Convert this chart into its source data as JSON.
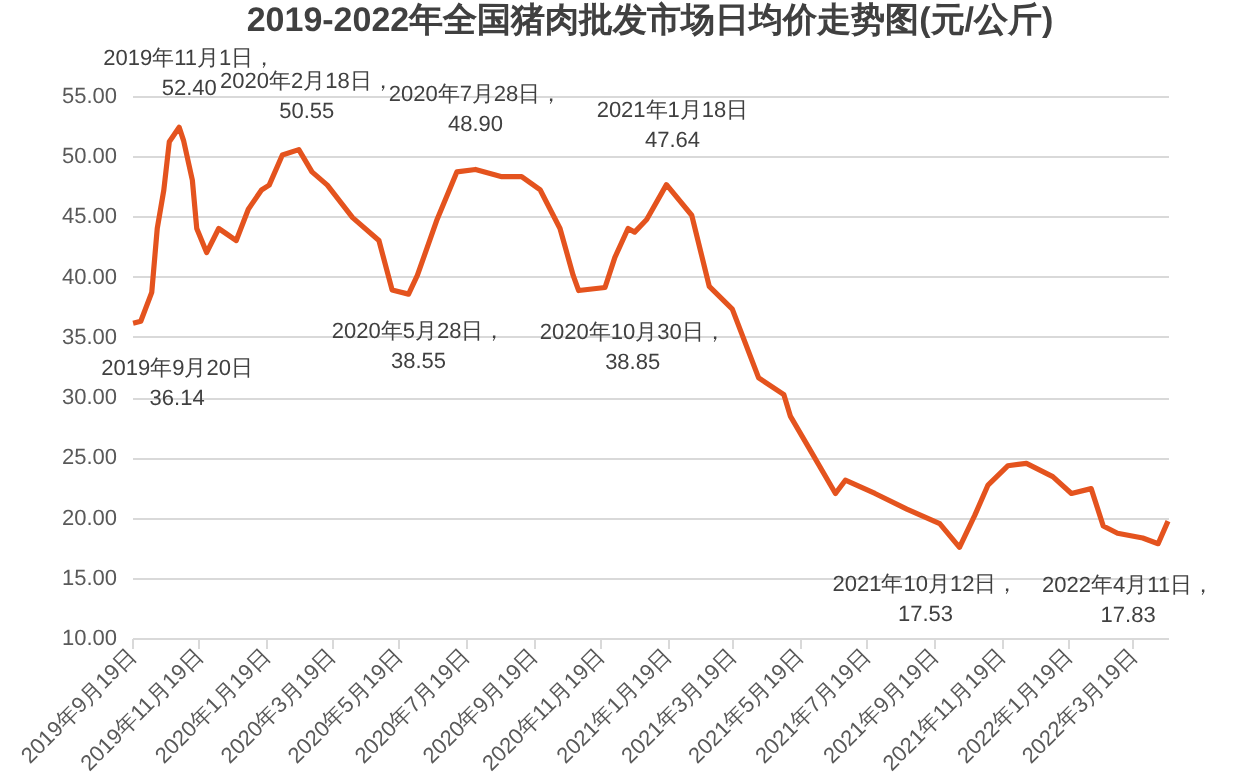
{
  "chart_data": {
    "type": "line",
    "title": "2019-2022年全国猪肉批发市场日均价走势图(元/公斤)",
    "x": [
      "2019-09-20",
      "2019-09-27",
      "2019-10-07",
      "2019-10-12",
      "2019-10-18",
      "2019-10-23",
      "2019-11-01",
      "2019-11-05",
      "2019-11-13",
      "2019-11-17",
      "2019-11-26",
      "2019-12-07",
      "2019-12-15",
      "2019-12-23",
      "2020-01-03",
      "2020-01-15",
      "2020-01-22",
      "2020-02-03",
      "2020-02-18",
      "2020-03-01",
      "2020-03-15",
      "2020-04-07",
      "2020-05-01",
      "2020-05-13",
      "2020-05-28",
      "2020-06-05",
      "2020-06-23",
      "2020-07-11",
      "2020-07-28",
      "2020-08-21",
      "2020-09-08",
      "2020-09-25",
      "2020-10-13",
      "2020-10-25",
      "2020-10-30",
      "2020-11-23",
      "2020-12-02",
      "2020-12-14",
      "2020-12-20",
      "2020-12-31",
      "2021-01-18",
      "2021-02-10",
      "2021-02-26",
      "2021-03-19",
      "2021-04-12",
      "2021-05-05",
      "2021-05-11",
      "2021-05-29",
      "2021-06-21",
      "2021-06-30",
      "2021-07-27",
      "2021-08-25",
      "2021-09-24",
      "2021-10-12",
      "2021-10-26",
      "2021-11-07",
      "2021-11-25",
      "2021-12-12",
      "2022-01-05",
      "2022-01-22",
      "2022-02-09",
      "2022-02-20",
      "2022-03-05",
      "2022-03-28",
      "2022-04-11",
      "2022-04-20"
    ],
    "series": [
      {
        "color": "#e4531e",
        "values": [
          36.14,
          36.3,
          38.7,
          44.0,
          47.2,
          51.2,
          52.4,
          51.3,
          48.0,
          44.0,
          42.0,
          44.0,
          43.5,
          43.0,
          45.6,
          47.2,
          47.6,
          50.1,
          50.55,
          48.7,
          47.6,
          44.9,
          43.0,
          38.9,
          38.55,
          40.1,
          44.75,
          48.7,
          48.9,
          48.3,
          48.3,
          47.2,
          44.0,
          40.1,
          38.85,
          39.1,
          41.6,
          44.0,
          43.7,
          44.75,
          47.64,
          45.1,
          39.2,
          37.3,
          31.6,
          30.2,
          28.4,
          25.6,
          22.0,
          23.1,
          22.0,
          20.7,
          19.5,
          17.53,
          20.2,
          22.7,
          24.3,
          24.5,
          23.4,
          22.0,
          22.4,
          19.3,
          18.7,
          18.3,
          17.83,
          19.7
        ]
      }
    ],
    "xlim": [
      "2019-09-19",
      "2022-04-20"
    ],
    "xticks": [
      {
        "value": "2019-09-19",
        "label": "2019年9月19日"
      },
      {
        "value": "2019-11-19",
        "label": "2019年11月19日"
      },
      {
        "value": "2020-01-19",
        "label": "2020年1月19日"
      },
      {
        "value": "2020-03-19",
        "label": "2020年3月19日"
      },
      {
        "value": "2020-05-19",
        "label": "2020年5月19日"
      },
      {
        "value": "2020-07-19",
        "label": "2020年7月19日"
      },
      {
        "value": "2020-09-19",
        "label": "2020年9月19日"
      },
      {
        "value": "2020-11-19",
        "label": "2020年11月19日"
      },
      {
        "value": "2021-01-19",
        "label": "2021年1月19日"
      },
      {
        "value": "2021-03-19",
        "label": "2021年3月19日"
      },
      {
        "value": "2021-05-19",
        "label": "2021年5月19日"
      },
      {
        "value": "2021-07-19",
        "label": "2021年7月19日"
      },
      {
        "value": "2021-09-19",
        "label": "2021年9月19日"
      },
      {
        "value": "2021-11-19",
        "label": "2021年11月19日"
      },
      {
        "value": "2022-01-19",
        "label": "2022年1月19日"
      },
      {
        "value": "2022-03-19",
        "label": "2022年3月19日"
      }
    ],
    "ylim": [
      10,
      55
    ],
    "yticks": [
      {
        "value": 10,
        "label": "10.00"
      },
      {
        "value": 15,
        "label": "15.00"
      },
      {
        "value": 20,
        "label": "20.00"
      },
      {
        "value": 25,
        "label": "25.00"
      },
      {
        "value": 30,
        "label": "30.00"
      },
      {
        "value": 35,
        "label": "35.00"
      },
      {
        "value": 40,
        "label": "40.00"
      },
      {
        "value": 45,
        "label": "45.00"
      },
      {
        "value": 50,
        "label": "50.00"
      },
      {
        "value": 55,
        "label": "55.00"
      }
    ],
    "grid": "y",
    "legend": false,
    "marker": "none",
    "line_style": "solid",
    "annotations": [
      {
        "text": "2019年9月20日\n36.14",
        "x": "2019-09-20",
        "y": 36.14
      },
      {
        "text": "2019年11月1日，\n52.40",
        "x": "2019-11-01",
        "y": 52.4
      },
      {
        "text": "2020年2月18日，\n50.55",
        "x": "2020-02-18",
        "y": 50.55
      },
      {
        "text": "2020年5月28日，\n38.55",
        "x": "2020-05-28",
        "y": 38.55
      },
      {
        "text": "2020年7月28日，\n48.90",
        "x": "2020-07-28",
        "y": 48.9
      },
      {
        "text": "2020年10月30日，\n38.85",
        "x": "2020-10-30",
        "y": 38.85
      },
      {
        "text": "2021年1月18日\n47.64",
        "x": "2021-01-18",
        "y": 47.64
      },
      {
        "text": "2021年10月12日，\n17.53",
        "x": "2021-10-12",
        "y": 17.53
      },
      {
        "text": "2022年4月11日，\n17.83",
        "x": "2022-04-11",
        "y": 17.83
      }
    ]
  }
}
